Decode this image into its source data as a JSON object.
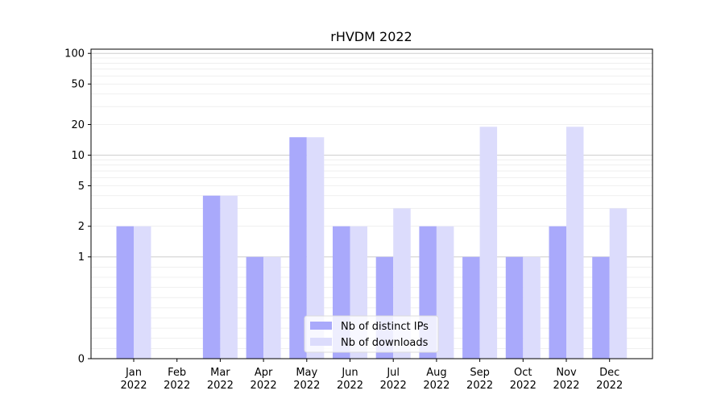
{
  "chart_data": {
    "type": "bar",
    "title": "rHVDM 2022",
    "xlabel": "",
    "ylabel": "",
    "y_scale": "symlog",
    "ylim": [
      0,
      110
    ],
    "y_ticks": [
      0,
      1,
      2,
      5,
      10,
      20,
      50,
      100
    ],
    "y_tick_labels": [
      "0",
      "1",
      "2",
      "5",
      "10",
      "20",
      "50",
      "100"
    ],
    "grid": true,
    "legend_position": "bottom-center",
    "categories": [
      [
        "Jan",
        "2022"
      ],
      [
        "Feb",
        "2022"
      ],
      [
        "Mar",
        "2022"
      ],
      [
        "Apr",
        "2022"
      ],
      [
        "May",
        "2022"
      ],
      [
        "Jun",
        "2022"
      ],
      [
        "Jul",
        "2022"
      ],
      [
        "Aug",
        "2022"
      ],
      [
        "Sep",
        "2022"
      ],
      [
        "Oct",
        "2022"
      ],
      [
        "Nov",
        "2022"
      ],
      [
        "Dec",
        "2022"
      ]
    ],
    "series": [
      {
        "name": "Nb of distinct IPs",
        "color": "#a9a9fb",
        "values": [
          2,
          0,
          4,
          1,
          15,
          2,
          1,
          2,
          1,
          1,
          2,
          1
        ]
      },
      {
        "name": "Nb of downloads",
        "color": "#dcdcfc",
        "values": [
          2,
          0,
          4,
          1,
          15,
          2,
          3,
          2,
          19,
          1,
          19,
          3
        ]
      }
    ]
  }
}
